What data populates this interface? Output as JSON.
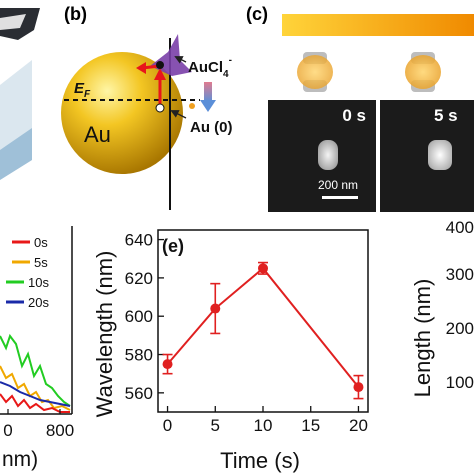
{
  "panel_b": {
    "label": "(b)",
    "ef_label": "E",
    "ef_sub": "F",
    "particle_label": "Au",
    "complex_label": "AuCl",
    "complex_sub": "4",
    "complex_sup": "-",
    "reduced_label": "Au (0)"
  },
  "panel_c": {
    "label": "(c)",
    "times": [
      "0 s",
      "5 s"
    ],
    "scale_label": "200 nm",
    "colors": {
      "bar_start": "#ffd43a",
      "bar_end": "#f08a00",
      "rod": "#f2b232"
    }
  },
  "panel_d": {
    "legend": [
      {
        "label": "0s",
        "color": "#e81818"
      },
      {
        "label": "5s",
        "color": "#f0a800"
      },
      {
        "label": "10s",
        "color": "#22cc22"
      },
      {
        "label": "20s",
        "color": "#1a2aa8"
      }
    ],
    "x_ticks": [
      "0",
      "800"
    ],
    "x_label_fragment": "nm)"
  },
  "panel_e": {
    "label": "(e)",
    "right_axis_label": "Length",
    "right_axis_unit": "(nm)",
    "right_ticks": [
      "400",
      "300",
      "200",
      "100"
    ]
  },
  "chart_data": {
    "type": "line",
    "xlabel": "Time (s)",
    "ylabel": "Wavelength (nm)",
    "x": [
      0,
      5,
      10,
      20
    ],
    "series": [
      {
        "values": [
          575,
          604,
          625,
          563
        ],
        "errors": [
          5,
          13,
          3,
          6
        ],
        "color": "#e02020"
      }
    ],
    "xlim": [
      -1,
      21
    ],
    "ylim": [
      550,
      645
    ],
    "x_ticks": [
      0,
      5,
      10,
      15,
      20
    ],
    "y_ticks": [
      560,
      580,
      600,
      620,
      640
    ],
    "grid": false
  }
}
